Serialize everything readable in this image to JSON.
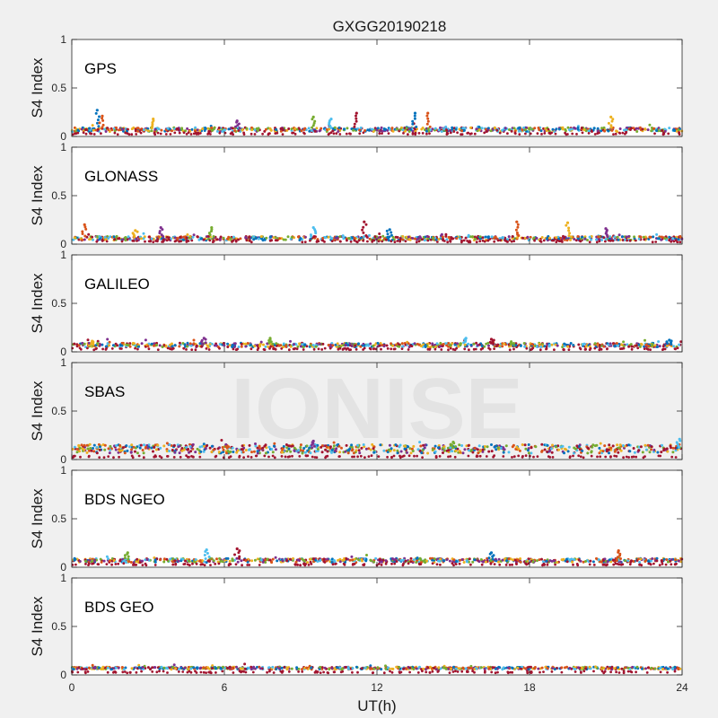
{
  "title": "GXGG20190218",
  "watermark": "IONISE",
  "colors": {
    "background": "#f0f0f0",
    "axes_background": "#ffffff",
    "watermark": "#e3e3e3",
    "series": [
      "#0072BD",
      "#D95319",
      "#EDB120",
      "#7E2F8E",
      "#77AC30",
      "#4DBEEE",
      "#A2142F"
    ]
  },
  "chart_data": {
    "type": "scatter",
    "title": "GXGG20190218",
    "xlabel": "UT(h)",
    "ylabel": "S4 Index",
    "xlim": [
      0,
      24
    ],
    "ylim": [
      0,
      1
    ],
    "xticks": [
      0,
      6,
      12,
      18,
      24
    ],
    "yticks": [
      0,
      0.5,
      1
    ],
    "ytick_labels": [
      "0",
      "0.5",
      "1"
    ],
    "xtick_labels": [
      "0",
      "6",
      "12",
      "18",
      "24"
    ],
    "grid": false,
    "panels": [
      {
        "name": "GPS",
        "baseline": 0.07,
        "spread": 0.02,
        "spikes": [
          [
            1.0,
            0.27
          ],
          [
            1.2,
            0.21
          ],
          [
            3.2,
            0.18
          ],
          [
            6.5,
            0.16
          ],
          [
            9.5,
            0.2
          ],
          [
            10.2,
            0.18
          ],
          [
            11.2,
            0.24
          ],
          [
            13.5,
            0.24
          ],
          [
            14.0,
            0.24
          ],
          [
            21.2,
            0.2
          ]
        ]
      },
      {
        "name": "GLONASS",
        "baseline": 0.06,
        "spread": 0.02,
        "spikes": [
          [
            0.5,
            0.2
          ],
          [
            2.5,
            0.14
          ],
          [
            3.5,
            0.17
          ],
          [
            5.5,
            0.17
          ],
          [
            9.5,
            0.17
          ],
          [
            11.5,
            0.23
          ],
          [
            12.5,
            0.15
          ],
          [
            17.5,
            0.23
          ],
          [
            19.5,
            0.22
          ],
          [
            21.0,
            0.16
          ]
        ]
      },
      {
        "name": "GALILEO",
        "baseline": 0.07,
        "spread": 0.02,
        "spikes": [
          [
            0.8,
            0.11
          ],
          [
            5.2,
            0.14
          ],
          [
            7.8,
            0.14
          ],
          [
            15.5,
            0.14
          ],
          [
            16.5,
            0.13
          ],
          [
            23.5,
            0.12
          ]
        ]
      },
      {
        "name": "SBAS",
        "baseline": 0.11,
        "spread": 0.045,
        "spikes": [
          [
            9.5,
            0.19
          ],
          [
            15.0,
            0.18
          ],
          [
            23.9,
            0.21
          ]
        ]
      },
      {
        "name": "BDS NGEO",
        "baseline": 0.07,
        "spread": 0.02,
        "spikes": [
          [
            2.2,
            0.15
          ],
          [
            5.3,
            0.18
          ],
          [
            6.5,
            0.19
          ],
          [
            16.5,
            0.15
          ],
          [
            21.5,
            0.17
          ]
        ]
      },
      {
        "name": "BDS GEO",
        "baseline": 0.07,
        "spread": 0.012,
        "spikes": []
      }
    ]
  }
}
